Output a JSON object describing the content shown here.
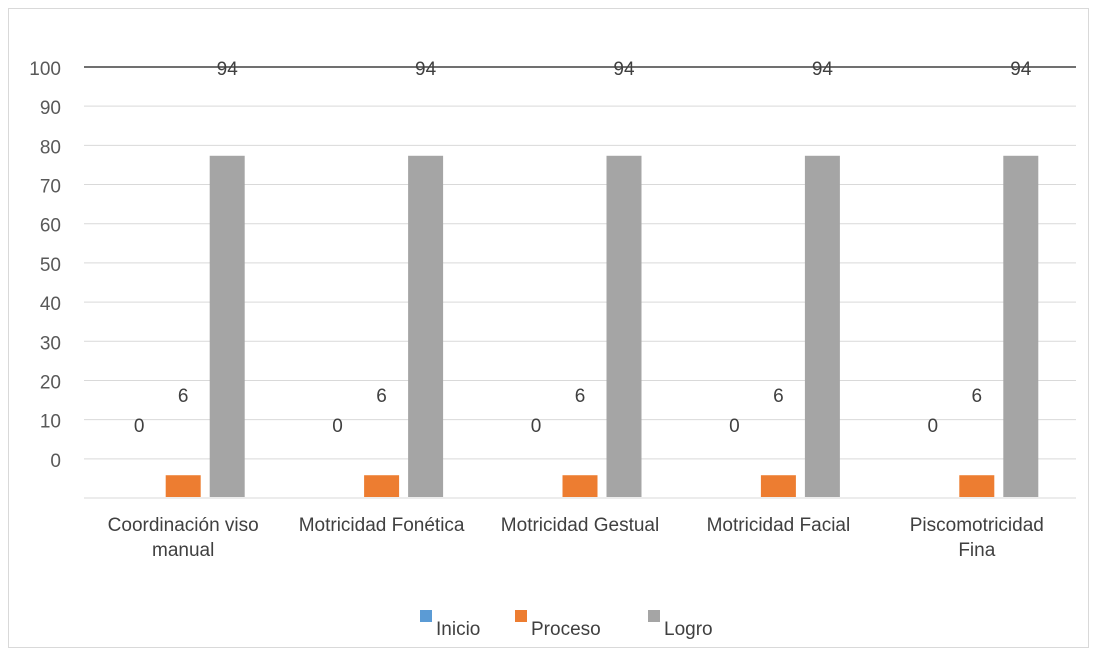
{
  "chart_data": {
    "type": "bar",
    "title": "",
    "xlabel": "",
    "ylabel": "",
    "categories": [
      [
        "Coordinación viso",
        "manual"
      ],
      [
        "Motricidad Fonética"
      ],
      [
        "Motricidad Gestual"
      ],
      [
        "Motricidad Facial"
      ],
      [
        "Piscomotricidad",
        "Fina"
      ]
    ],
    "series": [
      {
        "name": "Inicio",
        "color": "#5b9bd5",
        "values": [
          0,
          0,
          0,
          0,
          0
        ]
      },
      {
        "name": "Proceso",
        "color": "#ed7d31",
        "values": [
          6,
          6,
          6,
          6,
          6
        ]
      },
      {
        "name": "Logro",
        "color": "#a5a5a5",
        "values": [
          94,
          94,
          94,
          94,
          94
        ]
      }
    ],
    "y_tick_labels": [
      "0",
      "10",
      "20",
      "30",
      "40",
      "50",
      "60",
      "70",
      "80",
      "90",
      "100"
    ],
    "data_labels": [
      [
        "0",
        "6",
        "94"
      ],
      [
        "0",
        "6",
        "94"
      ],
      [
        "0",
        "6",
        "94"
      ],
      [
        "0",
        "6",
        "94"
      ],
      [
        "0",
        "6",
        "94"
      ]
    ],
    "ylim": [
      0,
      100
    ],
    "grid": true,
    "legend_position": "bottom"
  }
}
